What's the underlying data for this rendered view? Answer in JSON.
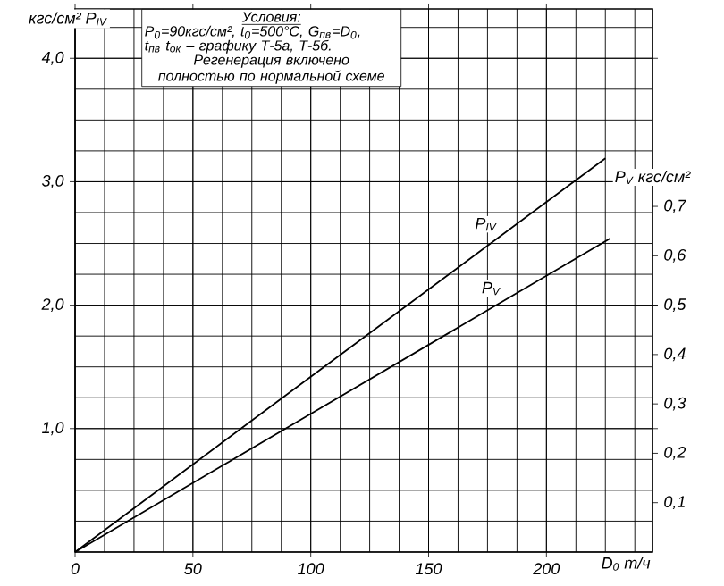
{
  "chart_data": {
    "type": "line",
    "xlabel": "D$_{0}$ т/ч",
    "ylabel": "кгс/см² P$_{IV}$",
    "y2label": "P$_{V}$ кгс/см²",
    "annotations": [
      "Условия:",
      "P$_{0}$=90кгс/см², t$_{0}$=500°C, G$_{пв}$=D$_{0}$,",
      "t$_{пв}$ t$_{ок}$ – графику Т-5а, Т-5б.",
      "Регенерация включено полностью по нормальной схеме"
    ],
    "series": [
      {
        "name": "P$_{IV}$",
        "color": "#000000",
        "x": [
          0,
          100,
          225
        ],
        "values": [
          0,
          1.42,
          3.19
        ]
      },
      {
        "name": "P$_{V}$",
        "color": "#000000",
        "axis": "y2",
        "x": [
          0,
          100,
          227
        ],
        "values": [
          0,
          0.28,
          0.635
        ]
      }
    ],
    "xlim": [
      0,
      245
    ],
    "xticks": [
      0,
      50,
      100,
      150,
      200
    ],
    "ylim": [
      0,
      4.4
    ],
    "yticks": [
      {
        "value": 1,
        "label": "1,0"
      },
      {
        "value": 2,
        "label": "2,0"
      },
      {
        "value": 3,
        "label": "3,0"
      },
      {
        "value": 4,
        "label": "4,0"
      }
    ],
    "y2lim": [
      0,
      1.1
    ],
    "y2ticks": [
      {
        "value": 0.1,
        "label": "0,1"
      },
      {
        "value": 0.2,
        "label": "0,2"
      },
      {
        "value": 0.3,
        "label": "0,3"
      },
      {
        "value": 0.4,
        "label": "0,4"
      },
      {
        "value": 0.5,
        "label": "0,5"
      },
      {
        "value": 0.6,
        "label": "0,6"
      },
      {
        "value": 0.7,
        "label": "0,7"
      }
    ],
    "grid": true,
    "marker": "none",
    "line_style": "solid"
  }
}
